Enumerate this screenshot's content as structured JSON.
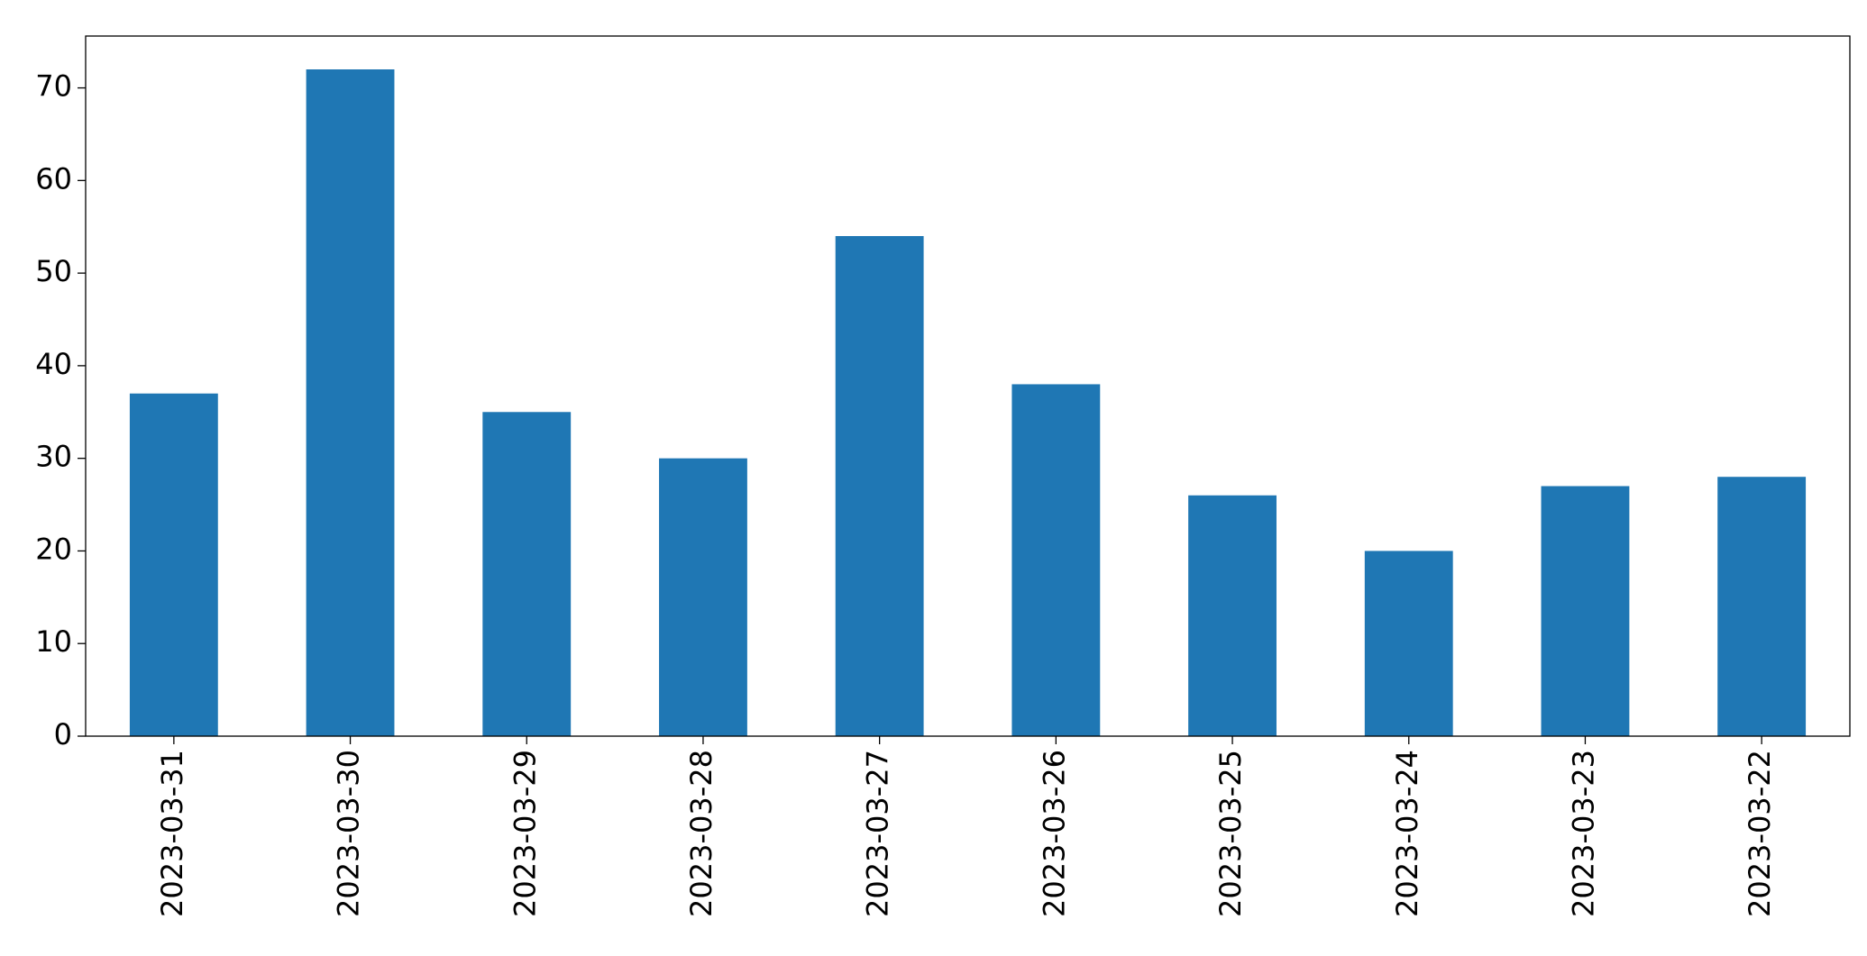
{
  "chart_data": {
    "type": "bar",
    "categories": [
      "2023-03-31",
      "2023-03-30",
      "2023-03-29",
      "2023-03-28",
      "2023-03-27",
      "2023-03-26",
      "2023-03-25",
      "2023-03-24",
      "2023-03-23",
      "2023-03-22"
    ],
    "values": [
      37,
      72,
      35,
      30,
      54,
      38,
      26,
      20,
      27,
      28
    ],
    "color": "#1f77b4",
    "ylim": [
      0,
      75.6
    ],
    "yticks": [
      0,
      10,
      20,
      30,
      40,
      50,
      60,
      70
    ],
    "grid": false
  }
}
